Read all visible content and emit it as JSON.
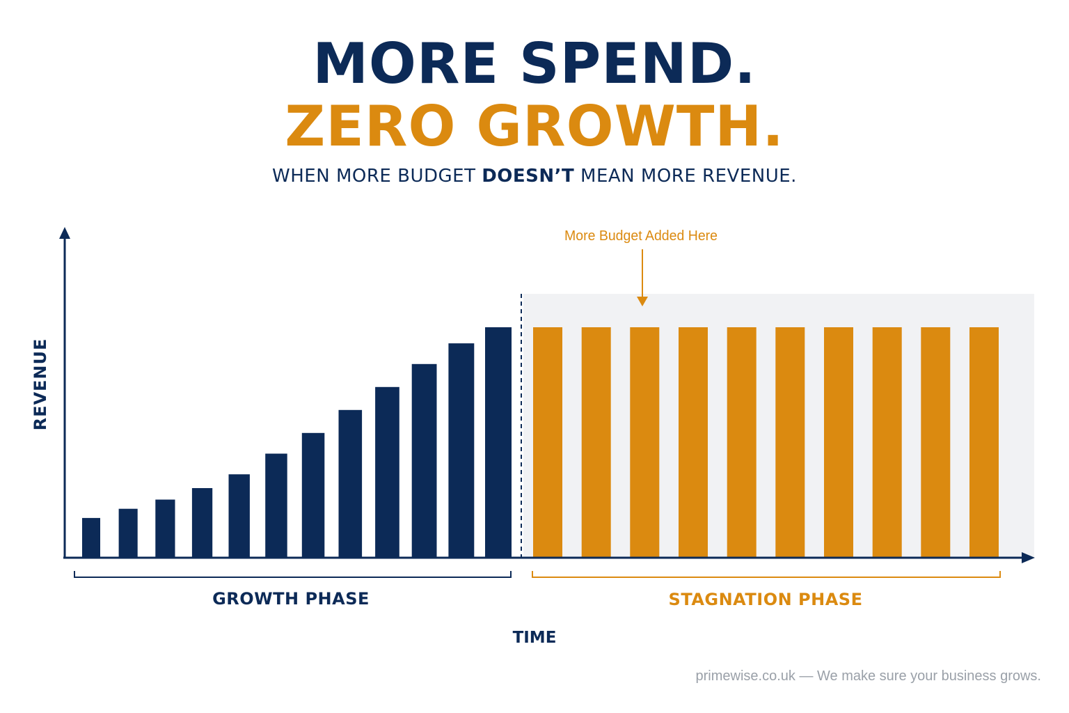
{
  "header": {
    "title_line_1": "MORE SPEND.",
    "title_line_2": "ZERO GROWTH.",
    "subtitle_part_1": "WHEN MORE BUDGET ",
    "subtitle_emphasis": "DOESN’T",
    "subtitle_part_2": " MEAN MORE REVENUE."
  },
  "colors": {
    "navy": "#0c2a57",
    "orange": "#db8a10",
    "shade": "#f1f2f4",
    "footer_text": "#9aa0a8"
  },
  "chart_data": {
    "type": "bar",
    "ylabel": "REVENUE",
    "xlabel": "TIME",
    "ylim": [
      0,
      100
    ],
    "grid": false,
    "annotation": "More Budget Added Here",
    "phases": [
      {
        "name": "GROWTH PHASE",
        "color": "#0c2a57",
        "values": [
          17,
          21,
          25,
          30,
          36,
          45,
          54,
          64,
          74,
          84,
          93,
          100
        ]
      },
      {
        "name": "STAGNATION PHASE",
        "color": "#db8a10",
        "values": [
          100,
          100,
          100,
          100,
          100,
          100,
          100,
          100,
          100,
          100
        ]
      }
    ]
  },
  "footer": {
    "text": "primewise.co.uk — We make sure your business grows."
  }
}
